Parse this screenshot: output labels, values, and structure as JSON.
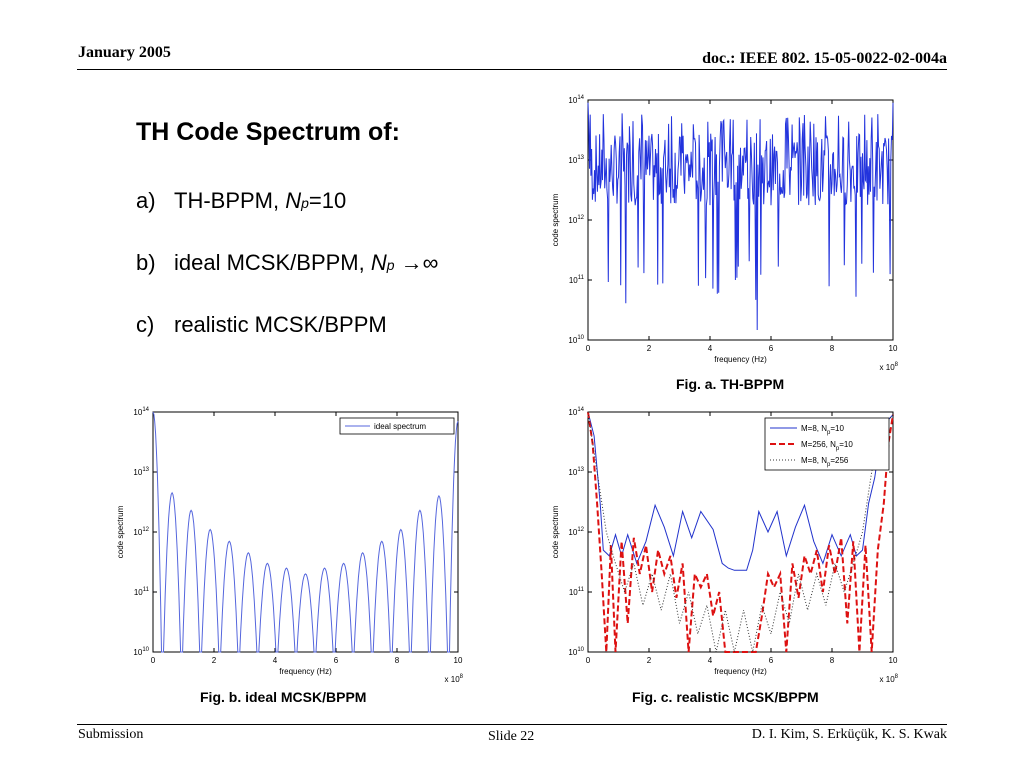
{
  "header": {
    "date": "January 2005",
    "doc": "doc.: IEEE 802. 15-05-0022-02-004a"
  },
  "footer": {
    "left": "Submission",
    "center": "Slide 22",
    "right": "D. I. Kim, S. Erküçük, K. S. Kwak"
  },
  "slide": {
    "title": "TH Code Spectrum of:",
    "bullets": [
      {
        "marker": "a)",
        "text": "TH-BPPM, ",
        "np": "N",
        "sub": "p",
        "tail": "=10"
      },
      {
        "marker": "b)",
        "text": "ideal MCSK/BPPM, ",
        "np": "N",
        "sub": "p",
        "tail": " →∞"
      },
      {
        "marker": "c)",
        "text": "realistic MCSK/BPPM"
      }
    ]
  },
  "captions": {
    "a": "Fig. a. TH-BPPM",
    "b": "Fig. b. ideal MCSK/BPPM",
    "c": "Fig. c. realistic MCSK/BPPM"
  },
  "chart_data": [
    {
      "type": "line",
      "id": "fig-a",
      "xlabel": "frequency (Hz)",
      "ylabel": "code spectrum",
      "x_multiplier": "x 10^8",
      "xlim": [
        0,
        10
      ],
      "ylim": [
        10000000000.0,
        100000000000000.0
      ],
      "yscale": "log",
      "xticks": [
        0,
        2,
        4,
        6,
        8,
        10
      ],
      "yticks": [
        "10^10",
        "10^11",
        "10^12",
        "10^13",
        "10^14"
      ],
      "series": [
        {
          "color": "#2233dd",
          "style": "solid",
          "description_values": {
            "typical_level": 7000000000000.0,
            "peak_level": 60000000000000.0,
            "min_dips": 10000000000.0
          }
        }
      ]
    },
    {
      "type": "line",
      "id": "fig-b",
      "xlabel": "frequency (Hz)",
      "ylabel": "code spectrum",
      "x_multiplier": "x 10^8",
      "xlim": [
        0,
        10
      ],
      "ylim": [
        10000000000.0,
        100000000000000.0
      ],
      "yscale": "log",
      "xticks": [
        0,
        2,
        4,
        6,
        8,
        10
      ],
      "yticks": [
        "10^10",
        "10^11",
        "10^12",
        "10^13",
        "10^14"
      ],
      "legend_position": "top-right",
      "series": [
        {
          "name": "ideal spectrum",
          "color": "#5566dd",
          "style": "solid",
          "lobe_x": [
            0,
            0.625,
            1.25,
            1.875,
            2.5,
            3.125,
            3.75,
            4.375,
            5.0,
            5.625,
            6.25,
            6.875,
            7.5,
            8.125,
            8.75,
            9.375,
            10
          ],
          "lobe_peak": [
            100000000000000.0,
            4500000000000.0,
            2300000000000.0,
            1100000000000.0,
            700000000000.0,
            450000000000.0,
            300000000000.0,
            250000000000.0,
            200000000000.0,
            250000000000.0,
            300000000000.0,
            450000000000.0,
            700000000000.0,
            1100000000000.0,
            2300000000000.0,
            4000000000000.0,
            70000000000000.0
          ]
        }
      ]
    },
    {
      "type": "line",
      "id": "fig-c",
      "xlabel": "frequency (Hz)",
      "ylabel": "code spectrum",
      "x_multiplier": "x 10^8",
      "xlim": [
        0,
        10
      ],
      "ylim": [
        10000000000.0,
        100000000000000.0
      ],
      "yscale": "log",
      "xticks": [
        0,
        2,
        4,
        6,
        8,
        10
      ],
      "yticks": [
        "10^10",
        "10^11",
        "10^12",
        "10^13",
        "10^14"
      ],
      "legend_position": "top-right",
      "series": [
        {
          "name": "M=8, Np=10",
          "color": "#2233cc",
          "style": "solid",
          "x": [
            0,
            0.2,
            0.4,
            0.5,
            0.7,
            0.9,
            1.1,
            1.3,
            1.6,
            1.9,
            2.2,
            2.5,
            2.8,
            3.1,
            3.4,
            3.7,
            4.1,
            4.4,
            4.6,
            4.8,
            5.0,
            5.2,
            5.4,
            5.6,
            5.9,
            6.2,
            6.5,
            6.8,
            7.1,
            7.4,
            7.7,
            8.0,
            8.3,
            8.6,
            8.8,
            9.0,
            9.2,
            9.4,
            9.6,
            9.8,
            10
          ],
          "y": [
            100000000000000.0,
            40000000000000.0,
            3000000000000.0,
            500000000000.0,
            400000000000.0,
            900000000000.0,
            400000000000.0,
            900000000000.0,
            300000000000.0,
            700000000000.0,
            2800000000000.0,
            1200000000000.0,
            400000000000.0,
            2200000000000.0,
            800000000000.0,
            2200000000000.0,
            1100000000000.0,
            300000000000.0,
            250000000000.0,
            230000000000.0,
            230000000000.0,
            230000000000.0,
            500000000000.0,
            2200000000000.0,
            1000000000000.0,
            2200000000000.0,
            400000000000.0,
            1200000000000.0,
            2800000000000.0,
            700000000000.0,
            300000000000.0,
            900000000000.0,
            400000000000.0,
            900000000000.0,
            400000000000.0,
            500000000000.0,
            3000000000000.0,
            8000000000000.0,
            40000000000000.0,
            70000000000000.0,
            90000000000000.0
          ]
        },
        {
          "name": "M=256, Np=10",
          "color": "#dd1111",
          "style": "dashed",
          "x": [
            0,
            0.15,
            0.3,
            0.45,
            0.6,
            0.75,
            0.9,
            1.1,
            1.3,
            1.5,
            1.7,
            1.9,
            2.1,
            2.3,
            2.5,
            2.7,
            2.9,
            3.1,
            3.3,
            3.5,
            3.7,
            3.9,
            4.1,
            4.3,
            4.5,
            4.7,
            4.9,
            5.1,
            5.3,
            5.5,
            5.7,
            5.9,
            6.1,
            6.3,
            6.5,
            6.7,
            6.9,
            7.1,
            7.3,
            7.5,
            7.7,
            7.9,
            8.1,
            8.3,
            8.5,
            8.7,
            8.9,
            9.1,
            9.3,
            9.5,
            9.7,
            9.85,
            10
          ],
          "y": [
            100000000000000.0,
            30000000000000.0,
            3000000000000.0,
            200000000000.0,
            10000000000.0,
            600000000000.0,
            10000000000.0,
            700000000000.0,
            30000000000.0,
            800000000000.0,
            200000000000.0,
            600000000000.0,
            100000000000.0,
            500000000000.0,
            200000000000.0,
            400000000000.0,
            80000000000.0,
            300000000000.0,
            10000000000.0,
            200000000000.0,
            120000000000.0,
            200000000000.0,
            40000000000.0,
            100000000000.0,
            10000000000.0,
            10000000000.0,
            10000000000.0,
            10000000000.0,
            10000000000.0,
            10000000000.0,
            40000000000.0,
            200000000000.0,
            120000000000.0,
            200000000000.0,
            10000000000.0,
            300000000000.0,
            80000000000.0,
            400000000000.0,
            200000000000.0,
            500000000000.0,
            100000000000.0,
            600000000000.0,
            200000000000.0,
            800000000000.0,
            30000000000.0,
            700000000000.0,
            10000000000.0,
            600000000000.0,
            10000000000.0,
            500000000000.0,
            3000000000000.0,
            30000000000000.0,
            90000000000000.0
          ]
        },
        {
          "name": "M=8, Np=256",
          "color": "#333333",
          "style": "dotted",
          "x": [
            0,
            0.3,
            0.6,
            0.9,
            1.2,
            1.5,
            1.8,
            2.1,
            2.4,
            2.7,
            3.0,
            3.3,
            3.6,
            3.9,
            4.2,
            4.5,
            4.8,
            5.1,
            5.4,
            5.7,
            6.0,
            6.3,
            6.6,
            6.9,
            7.2,
            7.5,
            7.8,
            8.1,
            8.4,
            8.7,
            9.0,
            9.3,
            9.6,
            10
          ],
          "y": [
            100000000000000.0,
            10000000000000.0,
            1000000000000.0,
            300000000000.0,
            100000000000.0,
            300000000000.0,
            60000000000.0,
            200000000000.0,
            50000000000.0,
            200000000000.0,
            30000000000.0,
            100000000000.0,
            20000000000.0,
            60000000000.0,
            10000000000.0,
            50000000000.0,
            10000000000.0,
            50000000000.0,
            10000000000.0,
            60000000000.0,
            20000000000.0,
            100000000000.0,
            30000000000.0,
            200000000000.0,
            50000000000.0,
            200000000000.0,
            60000000000.0,
            300000000000.0,
            100000000000.0,
            300000000000.0,
            1000000000000.0,
            10000000000000.0,
            50000000000000.0,
            90000000000000.0
          ]
        }
      ]
    }
  ]
}
